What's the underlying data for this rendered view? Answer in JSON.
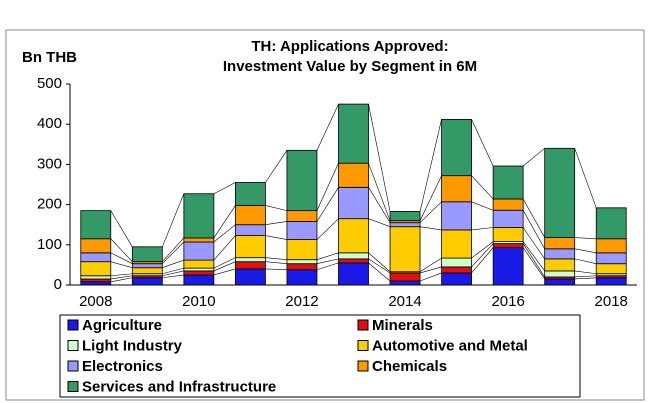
{
  "chart_data": {
    "type": "stacked_bar",
    "title": "TH: Applications Approved:",
    "subtitle": "Investment Value by Segment  in 6M",
    "y_label": "Bn THB",
    "categories": [
      "2008",
      null,
      "2010",
      null,
      "2012",
      null,
      "2014",
      null,
      "2016",
      null,
      "2018"
    ],
    "ylim": [
      0,
      500
    ],
    "yticks": [
      0,
      100,
      200,
      300,
      400,
      500
    ],
    "series": [
      {
        "name": "Agriculture",
        "color": "#1a1ae6",
        "values": [
          8,
          18,
          25,
          40,
          38,
          55,
          10,
          30,
          93,
          15,
          18
        ]
      },
      {
        "name": "Minerals",
        "color": "#e01010",
        "values": [
          7,
          5,
          10,
          18,
          15,
          10,
          20,
          15,
          10,
          5,
          5
        ]
      },
      {
        "name": "Light Industry",
        "color": "#ccffcc",
        "values": [
          8,
          5,
          7,
          10,
          10,
          15,
          3,
          22,
          5,
          15,
          5
        ]
      },
      {
        "name": "Automotive and Metal",
        "color": "#ffcc00",
        "values": [
          35,
          15,
          20,
          55,
          50,
          85,
          112,
          70,
          35,
          30,
          25
        ]
      },
      {
        "name": "Electronics",
        "color": "#9999ff",
        "values": [
          22,
          10,
          45,
          27,
          45,
          78,
          10,
          70,
          43,
          25,
          27
        ]
      },
      {
        "name": "Chemicals",
        "color": "#ff9900",
        "values": [
          35,
          5,
          10,
          48,
          27,
          60,
          5,
          65,
          28,
          28,
          35
        ]
      },
      {
        "name": "Services and Infrastructure",
        "color": "#339966",
        "values": [
          70,
          37,
          110,
          57,
          150,
          147,
          23,
          140,
          82,
          222,
          77
        ]
      }
    ]
  }
}
